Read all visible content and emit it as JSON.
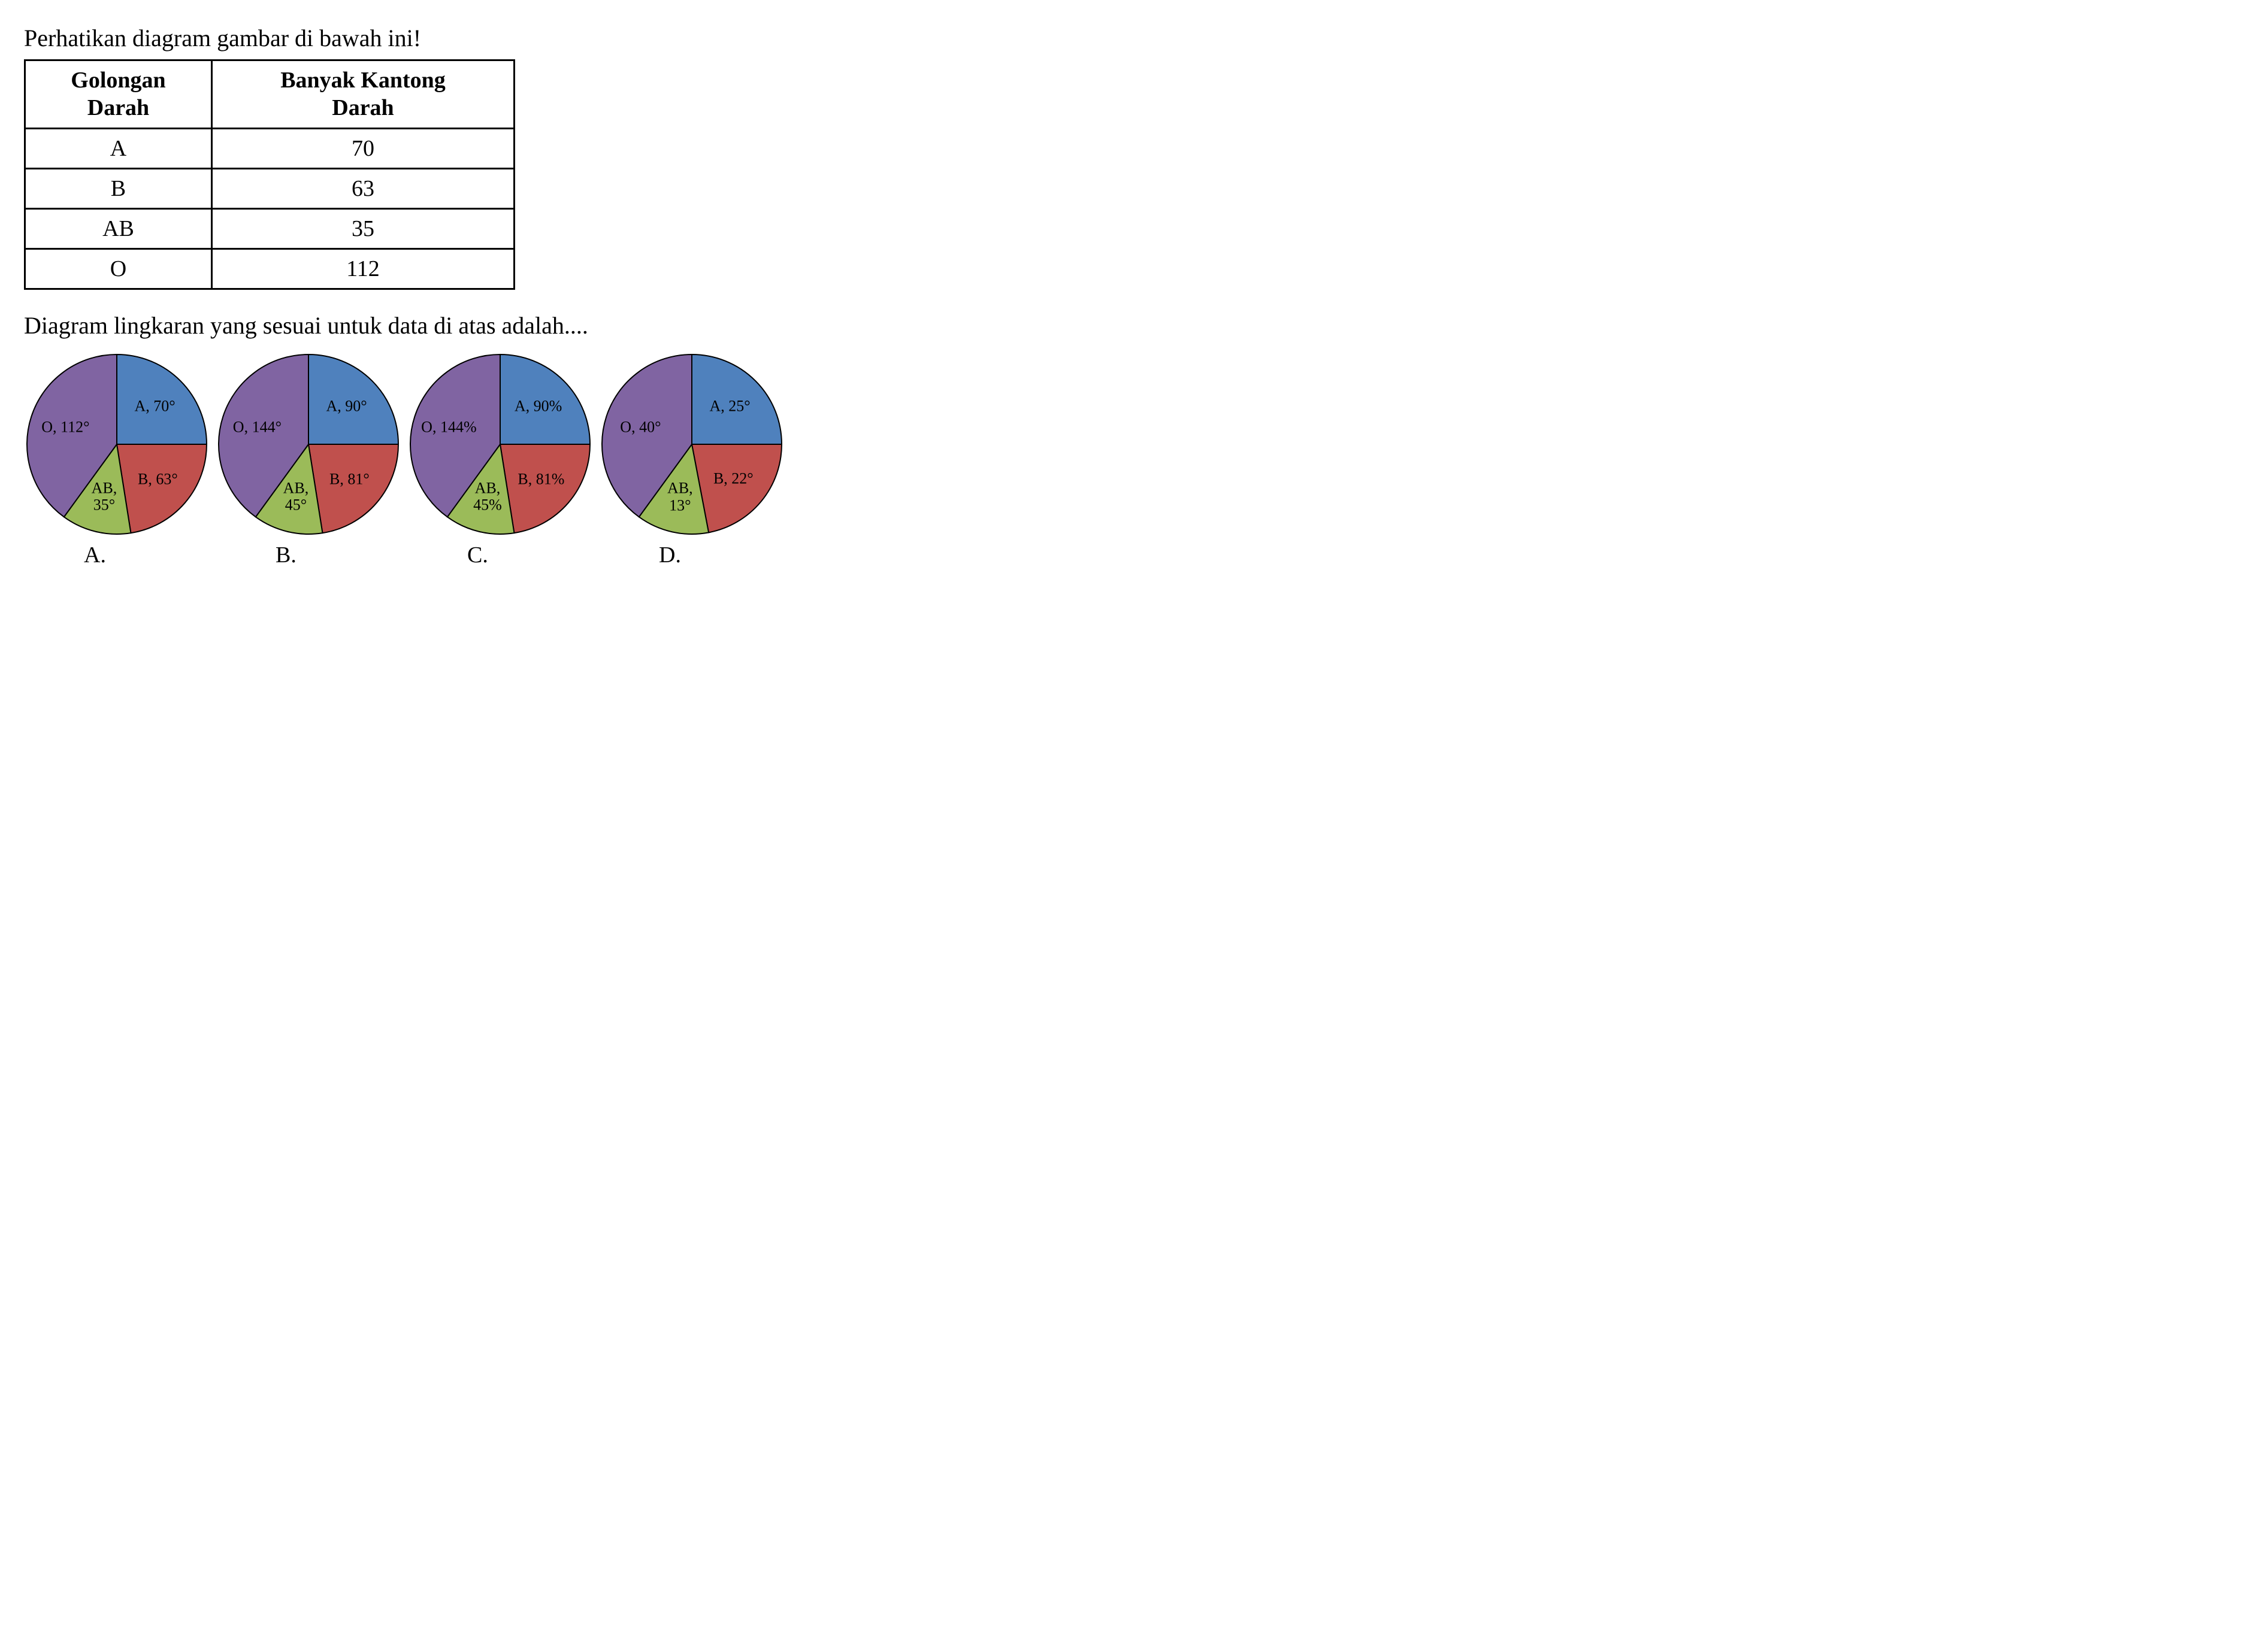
{
  "header": "Perhatikan diagram gambar di bawah ini!",
  "table": {
    "columns": [
      "Golongan\nDarah",
      "Banyak Kantong\nDarah"
    ],
    "rows": [
      [
        "A",
        "70"
      ],
      [
        "B",
        "63"
      ],
      [
        "AB",
        "35"
      ],
      [
        "O",
        "112"
      ]
    ],
    "border_color": "#000000",
    "background_color": "#ffffff"
  },
  "question": "Diagram lingkaran yang sesuai untuk data di atas adalah....",
  "pies": {
    "colors": {
      "A": "#4f81bd",
      "B": "#c0504d",
      "AB": "#9bbb59",
      "O": "#8064a2",
      "stroke": "#000000"
    },
    "label_fontsize": 26,
    "options": [
      {
        "letter": "A.",
        "slices": [
          {
            "key": "A",
            "value": 70,
            "label": "A, 70°"
          },
          {
            "key": "B",
            "value": 63,
            "label": "B, 63°"
          },
          {
            "key": "AB",
            "value": 35,
            "label": "AB,\n35°"
          },
          {
            "key": "O",
            "value": 112,
            "label": "O, 112°"
          }
        ]
      },
      {
        "letter": "B.",
        "slices": [
          {
            "key": "A",
            "value": 90,
            "label": "A, 90°"
          },
          {
            "key": "B",
            "value": 81,
            "label": "B, 81°"
          },
          {
            "key": "AB",
            "value": 45,
            "label": "AB,\n45°"
          },
          {
            "key": "O",
            "value": 144,
            "label": "O, 144°"
          }
        ]
      },
      {
        "letter": "C.",
        "slices": [
          {
            "key": "A",
            "value": 90,
            "label": "A, 90%"
          },
          {
            "key": "B",
            "value": 81,
            "label": "B, 81%"
          },
          {
            "key": "AB",
            "value": 45,
            "label": "AB,\n45%"
          },
          {
            "key": "O",
            "value": 144,
            "label": "O, 144%"
          }
        ]
      },
      {
        "letter": "D.",
        "slices": [
          {
            "key": "A",
            "value": 25,
            "label": "A, 25°"
          },
          {
            "key": "B",
            "value": 22,
            "label": "B, 22°"
          },
          {
            "key": "AB",
            "value": 13,
            "label": "AB,\n13°"
          },
          {
            "key": "O",
            "value": 40,
            "label": "O, 40°"
          }
        ]
      }
    ]
  }
}
